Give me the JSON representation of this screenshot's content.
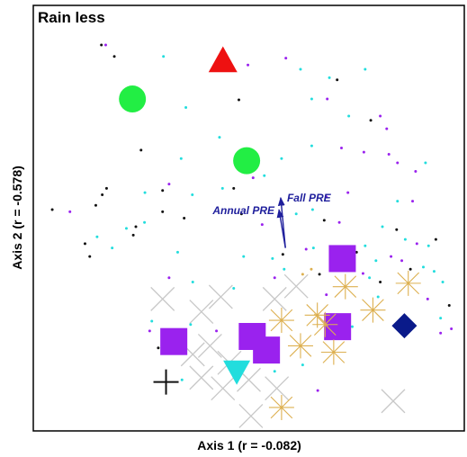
{
  "chart_data": {
    "type": "scatter",
    "title": "Rain less",
    "xlabel": "Axis 1 (r = -0.082)",
    "ylabel": "Axis 2 (r = -0.578)",
    "xlim": [
      0,
      100
    ],
    "ylim": [
      0,
      100
    ],
    "grid": false,
    "colors": {
      "green": "#22ee44",
      "red": "#ee1111",
      "purple": "#9a22ee",
      "navy": "#0a1a8a",
      "cyan": "#22dddd",
      "gold": "#ddb050",
      "gray": "#c8c8c8",
      "black": "#111111",
      "vector": "#1f1f9c"
    },
    "vectors": [
      {
        "label": "Fall PRE",
        "x0": 58.5,
        "y0": 43.0,
        "x1": 57.4,
        "y1": 54.8
      },
      {
        "label": "Annual PRE",
        "x0": 58.5,
        "y0": 43.0,
        "x1": 57.0,
        "y1": 52.0
      }
    ],
    "series": [
      {
        "marker": "circle",
        "color": "green",
        "size": 15,
        "points": [
          [
            23.0,
            78.0
          ],
          [
            49.5,
            63.5
          ]
        ]
      },
      {
        "marker": "triangle-up",
        "color": "red",
        "size": 16,
        "points": [
          [
            44.0,
            87.0
          ]
        ]
      },
      {
        "marker": "square",
        "color": "purple",
        "size": 15,
        "points": [
          [
            71.7,
            40.5
          ],
          [
            70.6,
            24.5
          ],
          [
            50.8,
            22.2
          ],
          [
            54.1,
            19.0
          ],
          [
            32.6,
            21.0
          ]
        ]
      },
      {
        "marker": "diamond",
        "color": "navy",
        "size": 14,
        "points": [
          [
            86.1,
            24.7
          ]
        ]
      },
      {
        "marker": "triangle-down",
        "color": "cyan",
        "size": 15,
        "points": [
          [
            47.2,
            14.0
          ]
        ]
      },
      {
        "marker": "plus",
        "color": "black",
        "size": 14,
        "points": [
          [
            30.8,
            11.5
          ]
        ]
      },
      {
        "marker": "star",
        "color": "gold",
        "size": 14,
        "points": [
          [
            72.4,
            33.9
          ],
          [
            87.0,
            34.7
          ],
          [
            57.6,
            26.0
          ],
          [
            65.9,
            27.2
          ],
          [
            67.7,
            25.0
          ],
          [
            78.8,
            28.4
          ],
          [
            62.0,
            20.0
          ],
          [
            69.7,
            18.5
          ],
          [
            57.6,
            5.5
          ]
        ]
      },
      {
        "marker": "cross",
        "color": "gray",
        "size": 13,
        "points": [
          [
            39.0,
            28.0
          ],
          [
            30.0,
            31.0
          ],
          [
            43.5,
            31.5
          ],
          [
            56.0,
            31.0
          ],
          [
            61.0,
            34.0
          ],
          [
            41.0,
            20.0
          ],
          [
            37.0,
            18.0
          ],
          [
            45.5,
            16.0
          ],
          [
            50.0,
            12.0
          ],
          [
            44.0,
            10.0
          ],
          [
            50.5,
            3.5
          ],
          [
            56.5,
            10.0
          ],
          [
            83.5,
            7.0
          ],
          [
            39.0,
            12.5
          ]
        ]
      },
      {
        "marker": "dot",
        "color": "mixed",
        "size": 1.5,
        "points": [
          [
            15.8,
            90.7,
            "black"
          ],
          [
            16.8,
            90.7,
            "purple"
          ],
          [
            18.8,
            88.0,
            "black"
          ],
          [
            30.2,
            88.0,
            "cyan"
          ],
          [
            49.8,
            86.0,
            "purple"
          ],
          [
            58.6,
            87.6,
            "purple"
          ],
          [
            62.0,
            85.0,
            "cyan"
          ],
          [
            68.7,
            83.0,
            "cyan"
          ],
          [
            70.5,
            82.5,
            "black"
          ],
          [
            77.0,
            85.0,
            "cyan"
          ],
          [
            35.4,
            76.0,
            "cyan"
          ],
          [
            47.7,
            77.8,
            "black"
          ],
          [
            64.6,
            78.0,
            "cyan"
          ],
          [
            68.2,
            78.0,
            "purple"
          ],
          [
            73.2,
            74.0,
            "cyan"
          ],
          [
            78.3,
            73.0,
            "black"
          ],
          [
            80.5,
            74.0,
            "purple"
          ],
          [
            82.0,
            71.0,
            "purple"
          ],
          [
            25.0,
            66.0,
            "black"
          ],
          [
            34.3,
            64.0,
            "cyan"
          ],
          [
            43.2,
            69.0,
            "cyan"
          ],
          [
            57.6,
            64.0,
            "cyan"
          ],
          [
            64.6,
            67.0,
            "cyan"
          ],
          [
            71.5,
            66.5,
            "purple"
          ],
          [
            76.7,
            65.5,
            "purple"
          ],
          [
            82.5,
            65.0,
            "purple"
          ],
          [
            84.5,
            63.0,
            "purple"
          ],
          [
            88.7,
            61.0,
            "purple"
          ],
          [
            91.0,
            63.0,
            "cyan"
          ],
          [
            17.0,
            57.0,
            "black"
          ],
          [
            25.9,
            56.0,
            "cyan"
          ],
          [
            30.0,
            56.5,
            "black"
          ],
          [
            31.5,
            58.0,
            "purple"
          ],
          [
            36.9,
            55.5,
            "cyan"
          ],
          [
            43.9,
            57.0,
            "cyan"
          ],
          [
            46.5,
            57.0,
            "black"
          ],
          [
            51.0,
            59.5,
            "purple"
          ],
          [
            53.6,
            60.0,
            "cyan"
          ],
          [
            68.0,
            55.0,
            "purple"
          ],
          [
            73.0,
            56.0,
            "purple"
          ],
          [
            84.5,
            54.0,
            "cyan"
          ],
          [
            88.0,
            54.0,
            "purple"
          ],
          [
            4.4,
            52.0,
            "black"
          ],
          [
            8.5,
            51.5,
            "purple"
          ],
          [
            14.5,
            53.0,
            "black"
          ],
          [
            16.0,
            55.5,
            "black"
          ],
          [
            30.0,
            51.5,
            "black"
          ],
          [
            35.0,
            50.0,
            "black"
          ],
          [
            48.3,
            51.0,
            "black"
          ],
          [
            53.1,
            48.5,
            "purple"
          ],
          [
            61.0,
            51.0,
            "cyan"
          ],
          [
            64.8,
            52.0,
            "cyan"
          ],
          [
            67.5,
            49.5,
            "black"
          ],
          [
            71.0,
            49.0,
            "purple"
          ],
          [
            81.0,
            48.0,
            "cyan"
          ],
          [
            84.3,
            47.3,
            "black"
          ],
          [
            86.3,
            45.0,
            "cyan"
          ],
          [
            89.0,
            44.0,
            "purple"
          ],
          [
            91.7,
            43.5,
            "cyan"
          ],
          [
            93.4,
            45.0,
            "black"
          ],
          [
            12.0,
            44.0,
            "black"
          ],
          [
            14.8,
            45.6,
            "cyan"
          ],
          [
            21.6,
            47.6,
            "cyan"
          ],
          [
            23.2,
            46.0,
            "black"
          ],
          [
            23.8,
            48.0,
            "black"
          ],
          [
            25.8,
            49.0,
            "cyan"
          ],
          [
            13.1,
            41.0,
            "black"
          ],
          [
            18.3,
            43.0,
            "cyan"
          ],
          [
            33.5,
            42.0,
            "cyan"
          ],
          [
            48.8,
            41.0,
            "cyan"
          ],
          [
            55.5,
            40.5,
            "cyan"
          ],
          [
            57.9,
            41.5,
            "black"
          ],
          [
            63.3,
            42.7,
            "purple"
          ],
          [
            65.0,
            43.0,
            "cyan"
          ],
          [
            75.0,
            42.0,
            "black"
          ],
          [
            77.0,
            43.5,
            "cyan"
          ],
          [
            79.5,
            40.0,
            "cyan"
          ],
          [
            83.0,
            41.0,
            "purple"
          ],
          [
            85.5,
            40.0,
            "purple"
          ],
          [
            87.5,
            38.0,
            "black"
          ],
          [
            90.5,
            38.5,
            "cyan"
          ],
          [
            93.0,
            37.5,
            "cyan"
          ],
          [
            56.0,
            36.0,
            "purple"
          ],
          [
            58.2,
            38.0,
            "cyan"
          ],
          [
            62.5,
            36.8,
            "gold"
          ],
          [
            64.5,
            38.0,
            "gold"
          ],
          [
            66.4,
            36.8,
            "black"
          ],
          [
            76.5,
            37.0,
            "purple"
          ],
          [
            78.0,
            36.0,
            "cyan"
          ],
          [
            80.5,
            35.0,
            "black"
          ],
          [
            95.0,
            35.0,
            "cyan"
          ],
          [
            31.5,
            36.0,
            "purple"
          ],
          [
            37.0,
            35.0,
            "cyan"
          ],
          [
            46.5,
            33.5,
            "cyan"
          ],
          [
            68.0,
            32.0,
            "purple"
          ],
          [
            80.0,
            31.5,
            "cyan"
          ],
          [
            91.5,
            31.0,
            "purple"
          ],
          [
            96.5,
            29.5,
            "black"
          ],
          [
            27.5,
            25.8,
            "cyan"
          ],
          [
            27.0,
            23.5,
            "purple"
          ],
          [
            36.5,
            25.0,
            "cyan"
          ],
          [
            42.5,
            23.5,
            "purple"
          ],
          [
            74.0,
            24.5,
            "cyan"
          ],
          [
            94.5,
            26.5,
            "cyan"
          ],
          [
            97.0,
            24.0,
            "purple"
          ],
          [
            94.5,
            23.0,
            "purple"
          ],
          [
            29.0,
            19.5,
            "black"
          ],
          [
            62.5,
            15.5,
            "cyan"
          ],
          [
            56.0,
            14.0,
            "cyan"
          ],
          [
            34.5,
            12.0,
            "cyan"
          ],
          [
            66.0,
            9.5,
            "purple"
          ]
        ]
      }
    ]
  }
}
